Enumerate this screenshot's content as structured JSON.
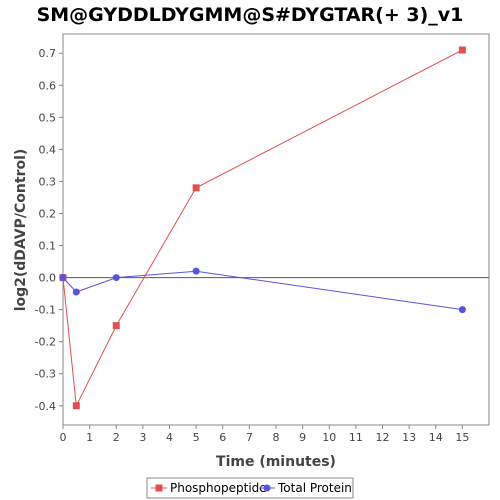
{
  "chart_data": {
    "type": "line",
    "title": "SM@GYDDLDYGMM@S#DYGTAR(+ 3)_v1",
    "xlabel": "Time (minutes)",
    "ylabel": "log2(dDAVP/Control)",
    "xlim": [
      0,
      16
    ],
    "ylim": [
      -0.46,
      0.76
    ],
    "x_ticks": [
      0,
      1,
      2,
      3,
      4,
      5,
      6,
      7,
      8,
      9,
      10,
      11,
      12,
      13,
      14,
      15
    ],
    "y_ticks": [
      -0.4,
      -0.3,
      -0.2,
      -0.1,
      0.0,
      0.1,
      0.2,
      0.3,
      0.4,
      0.5,
      0.6,
      0.7
    ],
    "y_tick_labels": [
      "-0.4",
      "-0.3",
      "-0.2",
      "-0.1",
      "0.0",
      "0.1",
      "0.2",
      "0.3",
      "0.4",
      "0.5",
      "0.6",
      "0.7"
    ],
    "zero_line": true,
    "grid": false,
    "legend_position": "bottom-center",
    "series": [
      {
        "name": "Phosphopeptide",
        "color": "#e05050",
        "marker": "square",
        "x": [
          0,
          0.5,
          2,
          5,
          15
        ],
        "y": [
          0.0,
          -0.4,
          -0.15,
          0.28,
          0.71
        ]
      },
      {
        "name": "Total Protein",
        "color": "#5555dd",
        "marker": "circle",
        "x": [
          0,
          0.5,
          2,
          5,
          15
        ],
        "y": [
          0.0,
          -0.045,
          0.0,
          0.02,
          -0.1
        ]
      }
    ]
  }
}
